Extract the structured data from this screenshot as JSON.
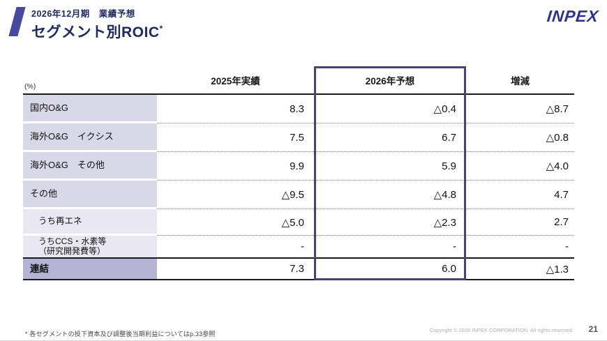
{
  "header": {
    "subtitle": "2026年12月期　業績予想",
    "title": "セグメント別ROIC",
    "title_asterisk": "*",
    "logo_text": "INPEX"
  },
  "table": {
    "unit_label": "(%)",
    "columns": [
      "2025年実績",
      "2026年予想",
      "増減"
    ],
    "rows": [
      {
        "label": "国内O&G",
        "y2025": "8.3",
        "y2026": "△0.4",
        "diff": "△8.7"
      },
      {
        "label": "海外O&G　イクシス",
        "y2025": "7.5",
        "y2026": "6.7",
        "diff": "△0.8"
      },
      {
        "label": "海外O&G　その他",
        "y2025": "9.9",
        "y2026": "5.9",
        "diff": "△4.0"
      },
      {
        "label": "その他",
        "y2025": "△9.5",
        "y2026": "△4.8",
        "diff": "4.7"
      },
      {
        "label": "うち再エネ",
        "y2025": "△5.0",
        "y2026": "△2.3",
        "diff": "2.7"
      },
      {
        "label": "うちCCS・水素等\n（研究開発費等）",
        "y2025": "-",
        "y2026": "-",
        "diff": "-"
      },
      {
        "label": "連結",
        "y2025": "7.3",
        "y2026": "6.0",
        "diff": "△1.3"
      }
    ]
  },
  "footer": {
    "footnote": "* 各セグメントの投下資本及び調整後当期利益についてはp.33参照",
    "copyright": "Copyright © 2026 INPEX CORPORATION. All rights reserved.",
    "page_number": "21"
  },
  "colors": {
    "accent_indigo": "#45437e",
    "row_label_bg": "#d9d8e8",
    "row_sub_bg": "#e8e7f2",
    "total_row_bg": "#b5b3d4",
    "title_navy": "#1f2a63",
    "logo_blue": "#2e3192"
  }
}
